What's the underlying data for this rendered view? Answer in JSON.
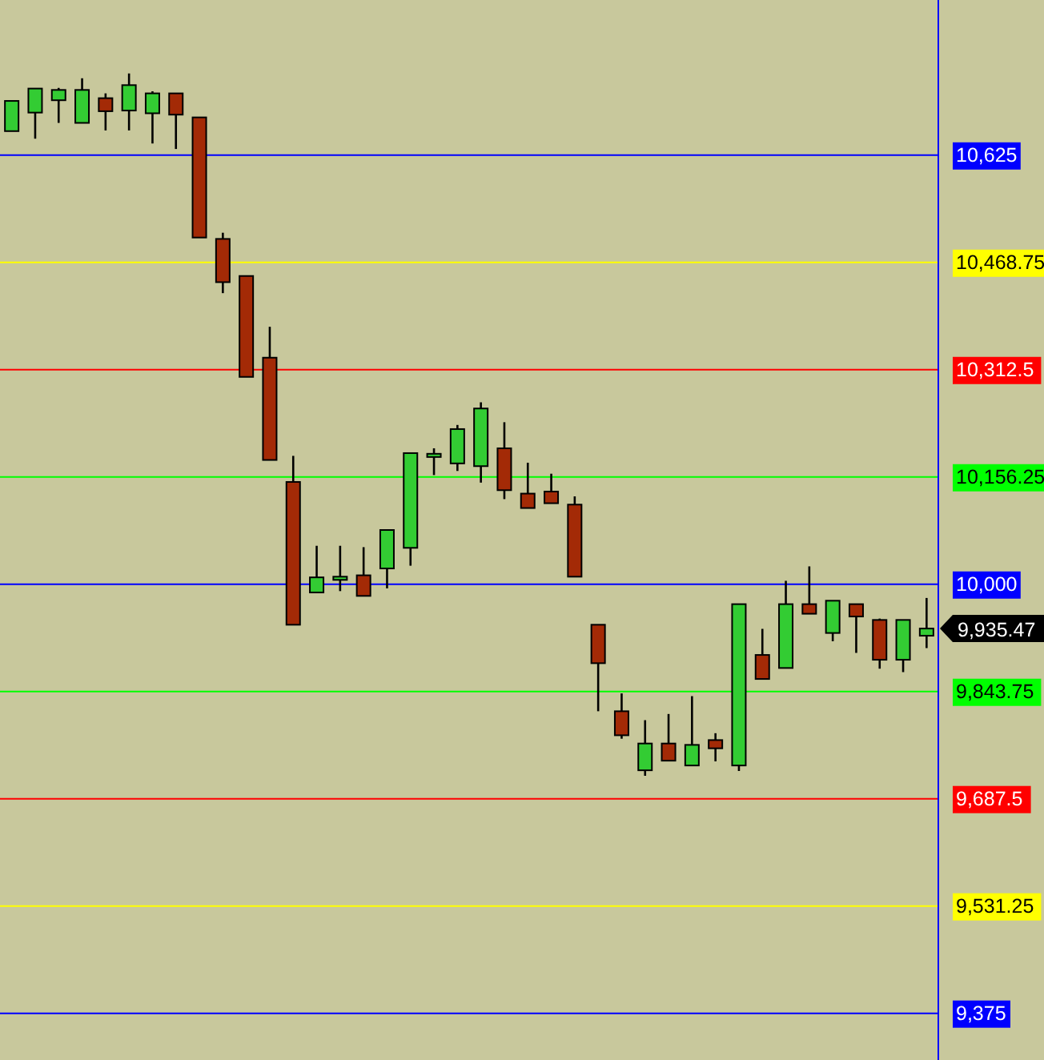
{
  "chart_data": {
    "type": "candlestick",
    "categories": [
      null,
      null,
      null,
      null,
      null,
      null,
      null,
      null,
      null,
      null,
      null,
      null,
      null,
      null,
      null,
      null,
      null,
      null,
      null,
      null,
      null,
      null,
      null,
      null,
      null,
      null,
      null,
      null,
      null,
      null,
      null,
      null,
      null,
      null,
      null,
      null,
      null,
      null,
      null,
      null
    ],
    "ohlc": [
      [
        10660,
        10704,
        10660,
        10704
      ],
      [
        10687,
        10722,
        10649,
        10722
      ],
      [
        10705,
        10723,
        10672,
        10720
      ],
      [
        10672,
        10737,
        10672,
        10720
      ],
      [
        10708,
        10715,
        10661,
        10689
      ],
      [
        10690,
        10744,
        10661,
        10727
      ],
      [
        10686,
        10718,
        10642,
        10715
      ],
      [
        10715,
        10715,
        10634,
        10684
      ],
      [
        10680,
        10680,
        10505,
        10505
      ],
      [
        10503,
        10512,
        10424,
        10440
      ],
      [
        10449,
        10449,
        10302,
        10302
      ],
      [
        10330,
        10375,
        10181,
        10181
      ],
      [
        10149,
        10187,
        9941,
        9941
      ],
      [
        9988,
        10056,
        9988,
        10010
      ],
      [
        10011,
        10056,
        9990,
        10011
      ],
      [
        10013,
        10054,
        9983,
        9983
      ],
      [
        10023,
        10079,
        9994,
        10079
      ],
      [
        10053,
        10191,
        10027,
        10191
      ],
      [
        10190,
        10198,
        10159,
        10190
      ],
      [
        10176,
        10232,
        10165,
        10226
      ],
      [
        10172,
        10265,
        10148,
        10256
      ],
      [
        10198,
        10236,
        10124,
        10137
      ],
      [
        10132,
        10177,
        10111,
        10111
      ],
      [
        10135,
        10161,
        10118,
        10118
      ],
      [
        10116,
        10128,
        10011,
        10011
      ],
      [
        9941,
        9941,
        9815,
        9885
      ],
      [
        9815,
        9841,
        9775,
        9780
      ],
      [
        9729,
        9802,
        9721,
        9768
      ],
      [
        9768,
        9811,
        9743,
        9743
      ],
      [
        9736,
        9837,
        9736,
        9766
      ],
      [
        9773,
        9783,
        9742,
        9761
      ],
      [
        9736,
        9971,
        9728,
        9971
      ],
      [
        9897,
        9935,
        9862,
        9862
      ],
      [
        9878,
        10005,
        9878,
        9971
      ],
      [
        9971,
        10026,
        9957,
        9957
      ],
      [
        9929,
        9976,
        9917,
        9976
      ],
      [
        9971,
        9971,
        9900,
        9953
      ],
      [
        9948,
        9950,
        9877,
        9890
      ],
      [
        9890,
        9948,
        9872,
        9948
      ],
      [
        9925,
        9980,
        9907,
        9935.47
      ]
    ],
    "ylim": [
      9307,
      10851
    ],
    "yticks": [
      {
        "value": 10625,
        "label": "10,625"
      },
      {
        "value": 10468.75,
        "label": "10,468.75"
      },
      {
        "value": 10312.5,
        "label": "10,312.5"
      },
      {
        "value": 10156.25,
        "label": "10,156.25"
      },
      {
        "value": 10000,
        "label": "10,000"
      },
      {
        "value": 9843.75,
        "label": "9,843.75"
      },
      {
        "value": 9687.5,
        "label": "9,687.5"
      },
      {
        "value": 9531.25,
        "label": "9,531.25"
      },
      {
        "value": 9375,
        "label": "9,375"
      }
    ],
    "ref_lines": [
      {
        "axis": "y",
        "value": 10625,
        "color": "#0000ff"
      },
      {
        "axis": "y",
        "value": 10468.75,
        "color": "#ffff00"
      },
      {
        "axis": "y",
        "value": 10312.5,
        "color": "#ff0000"
      },
      {
        "axis": "y",
        "value": 10156.25,
        "color": "#00ff00"
      },
      {
        "axis": "y",
        "value": 10000,
        "color": "#0000ff"
      },
      {
        "axis": "y",
        "value": 9843.75,
        "color": "#00ff00"
      },
      {
        "axis": "y",
        "value": 9687.5,
        "color": "#ff0000"
      },
      {
        "axis": "y",
        "value": 9531.25,
        "color": "#ffff00"
      },
      {
        "axis": "y",
        "value": 9375,
        "color": "#0000ff"
      }
    ],
    "annotations": [
      "9,935.47"
    ]
  }
}
